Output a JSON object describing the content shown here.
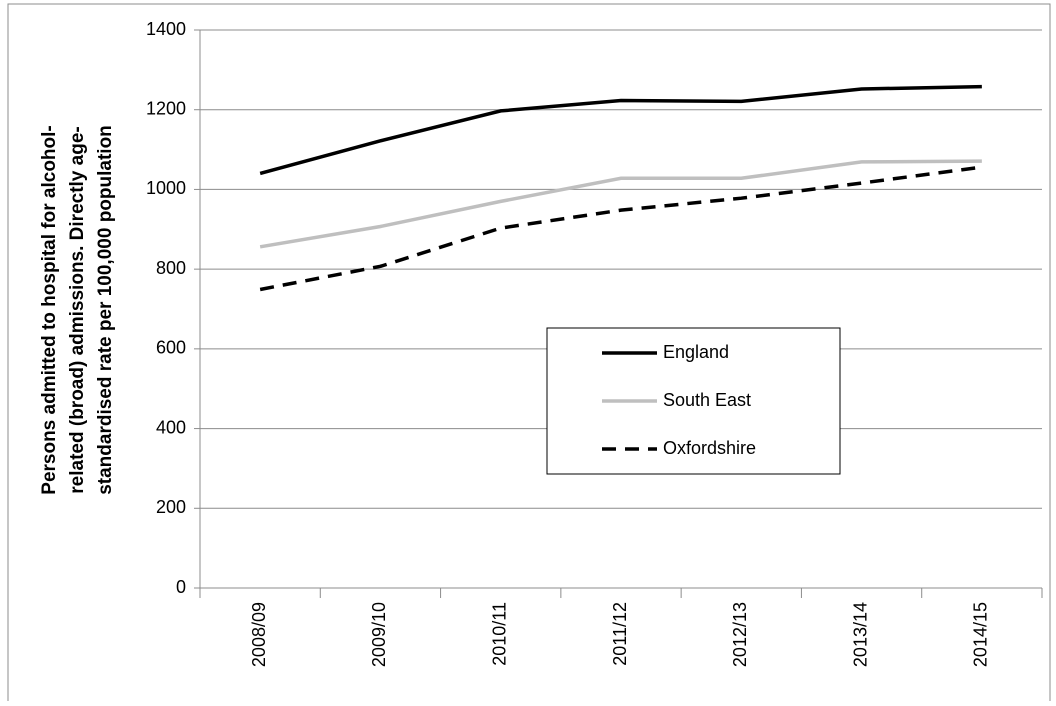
{
  "chart_data": {
    "type": "line",
    "y_label": [
      "Persons admitted to hospital for alcohol-",
      "related (broad) admissions. Directly age-",
      "standardised rate per 100,000 population"
    ],
    "categories": [
      "2008/09",
      "2009/10",
      "2010/11",
      "2011/12",
      "2012/13",
      "2013/14",
      "2014/15"
    ],
    "series": [
      {
        "name": "England",
        "color": "#000000",
        "dash": "solid",
        "values": [
          1040,
          1122,
          1197,
          1223,
          1221,
          1252,
          1258
        ]
      },
      {
        "name": "South East",
        "color": "#bfbfbf",
        "dash": "solid",
        "values": [
          856,
          907,
          970,
          1028,
          1028,
          1069,
          1071
        ]
      },
      {
        "name": "Oxfordshire",
        "color": "#000000",
        "dash": "dashed",
        "values": [
          749,
          807,
          903,
          948,
          978,
          1016,
          1056
        ]
      }
    ],
    "ylim": [
      0,
      1400
    ],
    "yticks": [
      0,
      200,
      400,
      600,
      800,
      1000,
      1200,
      1400
    ],
    "grid": true,
    "legend": "center"
  }
}
